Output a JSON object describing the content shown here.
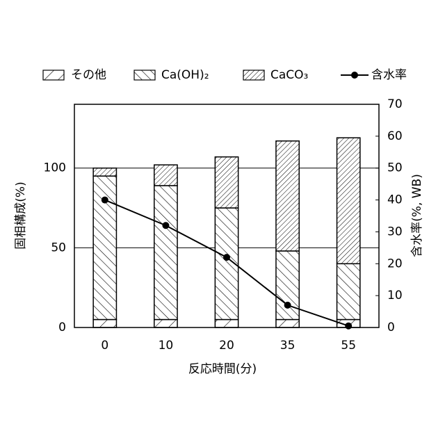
{
  "chart_data": {
    "type": "bar",
    "stacked": true,
    "x_label": "反応時間(分)",
    "y_label": "固相構成(%)",
    "y2_label": "含水率(%, WB)",
    "categories": [
      "0",
      "10",
      "20",
      "35",
      "55"
    ],
    "series": [
      {
        "name": "その他",
        "color": "#000000",
        "values": [
          5,
          5,
          5,
          5,
          5
        ]
      },
      {
        "name": "Ca(OH)₂",
        "color": "#000000",
        "values": [
          90,
          84,
          70,
          43,
          35
        ]
      },
      {
        "name": "CaCO₃",
        "color": "#000000",
        "values": [
          5,
          13,
          32,
          69,
          79
        ]
      },
      {
        "name": "含水率",
        "type": "line",
        "axis": "y2",
        "color": "#000000",
        "values": [
          40,
          32,
          22,
          7,
          0.5
        ]
      }
    ],
    "ylim": [
      0,
      140
    ],
    "yticks": [
      0,
      50,
      100
    ],
    "y2lim": [
      0,
      70
    ],
    "y2ticks": [
      0,
      10,
      20,
      30,
      40,
      50,
      60,
      70
    ],
    "grid": true,
    "legend": "top"
  }
}
